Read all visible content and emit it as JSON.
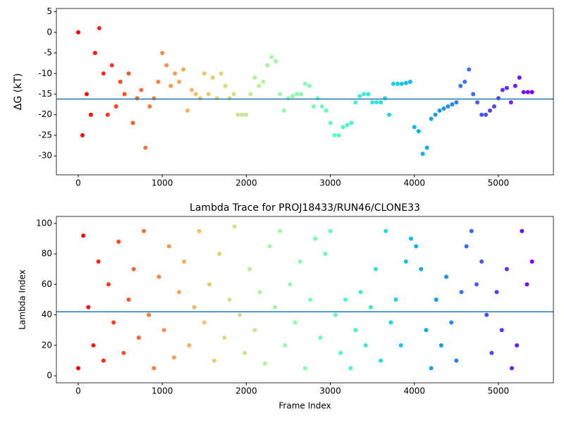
{
  "chart_data": [
    {
      "type": "scatter",
      "ylabel": "ΔG (kT)",
      "colormap": "rainbow",
      "colormap_reversed": true,
      "hline": -16.2,
      "hline_color": "#1f77b4",
      "xlim": [
        -260,
        5655
      ],
      "ylim": [
        -34.6,
        5.8
      ],
      "xticks": [
        0,
        1000,
        2000,
        3000,
        4000,
        5000
      ],
      "yticks": [
        5,
        0,
        -5,
        -10,
        -15,
        -20,
        -25,
        -30
      ],
      "x": [
        0,
        50,
        100,
        150,
        200,
        250,
        300,
        350,
        400,
        450,
        500,
        550,
        600,
        650,
        700,
        750,
        800,
        850,
        900,
        950,
        1000,
        1050,
        1100,
        1150,
        1200,
        1250,
        1300,
        1350,
        1400,
        1450,
        1500,
        1550,
        1600,
        1650,
        1700,
        1750,
        1800,
        1850,
        1900,
        1950,
        2000,
        2050,
        2100,
        2150,
        2200,
        2250,
        2300,
        2350,
        2400,
        2450,
        2500,
        2550,
        2600,
        2650,
        2700,
        2750,
        2800,
        2850,
        2900,
        2950,
        3000,
        3050,
        3100,
        3150,
        3200,
        3250,
        3300,
        3350,
        3400,
        3450,
        3500,
        3550,
        3600,
        3650,
        3700,
        3750,
        3800,
        3850,
        3900,
        3950,
        4000,
        4050,
        4100,
        4150,
        4200,
        4250,
        4300,
        4350,
        4400,
        4450,
        4500,
        4550,
        4600,
        4650,
        4700,
        4750,
        4800,
        4850,
        4900,
        4950,
        5000,
        5050,
        5100,
        5150,
        5200,
        5250,
        5300,
        5350,
        5400
      ],
      "values": [
        0,
        -25,
        -15,
        -20,
        -5,
        1,
        -10,
        -20,
        -8,
        -18,
        -12,
        -15,
        -10,
        -22,
        -16,
        -14,
        -28,
        -18,
        -16,
        -12,
        -5,
        -8,
        -13,
        -10,
        -12,
        -9,
        -19,
        -14,
        -15,
        -16,
        -10,
        -15,
        -11,
        -16,
        -10,
        -13,
        -16,
        -15,
        -20,
        -20,
        -20,
        -15,
        -11,
        -13,
        -12,
        -8,
        -6,
        -7,
        -15,
        -19,
        -16,
        -15.5,
        -15,
        -15,
        -12.5,
        -13,
        -18,
        -16,
        -18,
        -19,
        -22,
        -25,
        -25,
        -23,
        -22.5,
        -22,
        -17,
        -15.5,
        -15,
        -15,
        -17,
        -17,
        -17,
        -16,
        -20,
        -12.5,
        -12.5,
        -12.5,
        -12.3,
        -12,
        -23,
        -24,
        -29.5,
        -28,
        -21,
        -20,
        -19,
        -18.5,
        -18,
        -17.5,
        -17,
        -13,
        -12,
        -9,
        -15,
        -17,
        -20,
        -20,
        -19,
        -18,
        -16,
        -14,
        -13.5,
        -17,
        -13,
        -11,
        -14.5,
        -14.5,
        -14.5
      ]
    },
    {
      "type": "scatter",
      "title": "Lambda Trace for PROJ18433/RUN46/CLONE33",
      "xlabel": "Frame Index",
      "ylabel": "Lambda Index",
      "colormap": "rainbow",
      "colormap_reversed": true,
      "hline": 42,
      "hline_color": "#1f77b4",
      "xlim": [
        -260,
        5655
      ],
      "ylim": [
        -4.6,
        104.6
      ],
      "xticks": [
        0,
        1000,
        2000,
        3000,
        4000,
        5000
      ],
      "yticks": [
        0,
        20,
        40,
        60,
        80,
        100
      ],
      "x": [
        0,
        60,
        120,
        180,
        240,
        300,
        360,
        420,
        480,
        540,
        600,
        660,
        720,
        780,
        840,
        900,
        960,
        1020,
        1080,
        1140,
        1200,
        1260,
        1320,
        1380,
        1440,
        1500,
        1560,
        1620,
        1680,
        1740,
        1800,
        1860,
        1920,
        1980,
        2040,
        2100,
        2160,
        2220,
        2280,
        2340,
        2400,
        2460,
        2520,
        2580,
        2640,
        2700,
        2760,
        2820,
        2880,
        2940,
        3000,
        3060,
        3120,
        3180,
        3240,
        3300,
        3360,
        3420,
        3480,
        3540,
        3600,
        3660,
        3720,
        3780,
        3840,
        3900,
        3960,
        4020,
        4080,
        4140,
        4200,
        4260,
        4320,
        4380,
        4440,
        4500,
        4560,
        4620,
        4680,
        4740,
        4800,
        4860,
        4920,
        4980,
        5040,
        5100,
        5160,
        5220,
        5280,
        5340,
        5400
      ],
      "values": [
        5,
        92,
        45,
        20,
        75,
        10,
        60,
        35,
        88,
        15,
        50,
        70,
        25,
        95,
        40,
        5,
        65,
        30,
        85,
        12,
        55,
        75,
        20,
        45,
        95,
        35,
        60,
        10,
        80,
        25,
        50,
        98,
        40,
        15,
        70,
        30,
        55,
        8,
        85,
        45,
        95,
        20,
        60,
        35,
        75,
        5,
        50,
        90,
        25,
        80,
        95,
        40,
        15,
        50,
        5,
        30,
        55,
        20,
        45,
        70,
        10,
        95,
        35,
        50,
        20,
        75,
        90,
        85,
        70,
        30,
        5,
        50,
        20,
        65,
        35,
        10,
        55,
        85,
        95,
        60,
        75,
        40,
        15,
        55,
        30,
        70,
        5,
        20,
        95,
        60,
        75
      ]
    }
  ]
}
